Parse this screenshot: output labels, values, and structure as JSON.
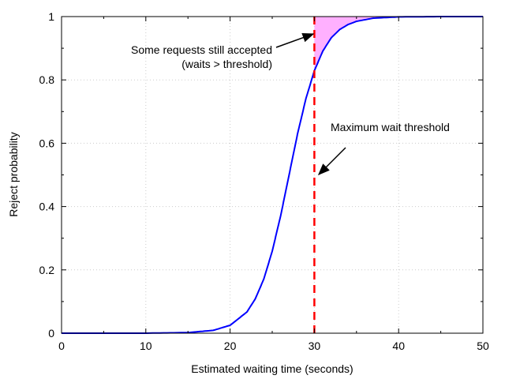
{
  "chart_data": {
    "type": "line",
    "xlabel": "Estimated waiting time (seconds)",
    "ylabel": "Reject probability",
    "xlim": [
      0,
      50
    ],
    "ylim": [
      0,
      1
    ],
    "xticks": [
      "0",
      "10",
      "20",
      "30",
      "40",
      "50"
    ],
    "yticks": [
      "0",
      "0.2",
      "0.4",
      "0.6",
      "0.8",
      "1"
    ],
    "grid": true,
    "series": [
      {
        "color": "#0000ff",
        "x": [
          0,
          10,
          15,
          18,
          20,
          22,
          23,
          24,
          25,
          26,
          27,
          28,
          29,
          30,
          31,
          32,
          33,
          34,
          35,
          37,
          40,
          45,
          50
        ],
        "y": [
          0,
          0.0001,
          0.002,
          0.009,
          0.025,
          0.067,
          0.109,
          0.171,
          0.259,
          0.371,
          0.5,
          0.629,
          0.741,
          0.829,
          0.891,
          0.933,
          0.959,
          0.975,
          0.985,
          0.995,
          0.999,
          1.0,
          1.0
        ]
      }
    ],
    "threshold": {
      "x": 30,
      "color": "#ff0000"
    },
    "shaded_region": {
      "from_x": 30,
      "color": "#ffb0ff"
    },
    "annotations": [
      {
        "lines": [
          "Some requests still accepted",
          "(waits > threshold)"
        ]
      },
      {
        "lines": [
          "Maximum wait threshold"
        ]
      }
    ]
  }
}
